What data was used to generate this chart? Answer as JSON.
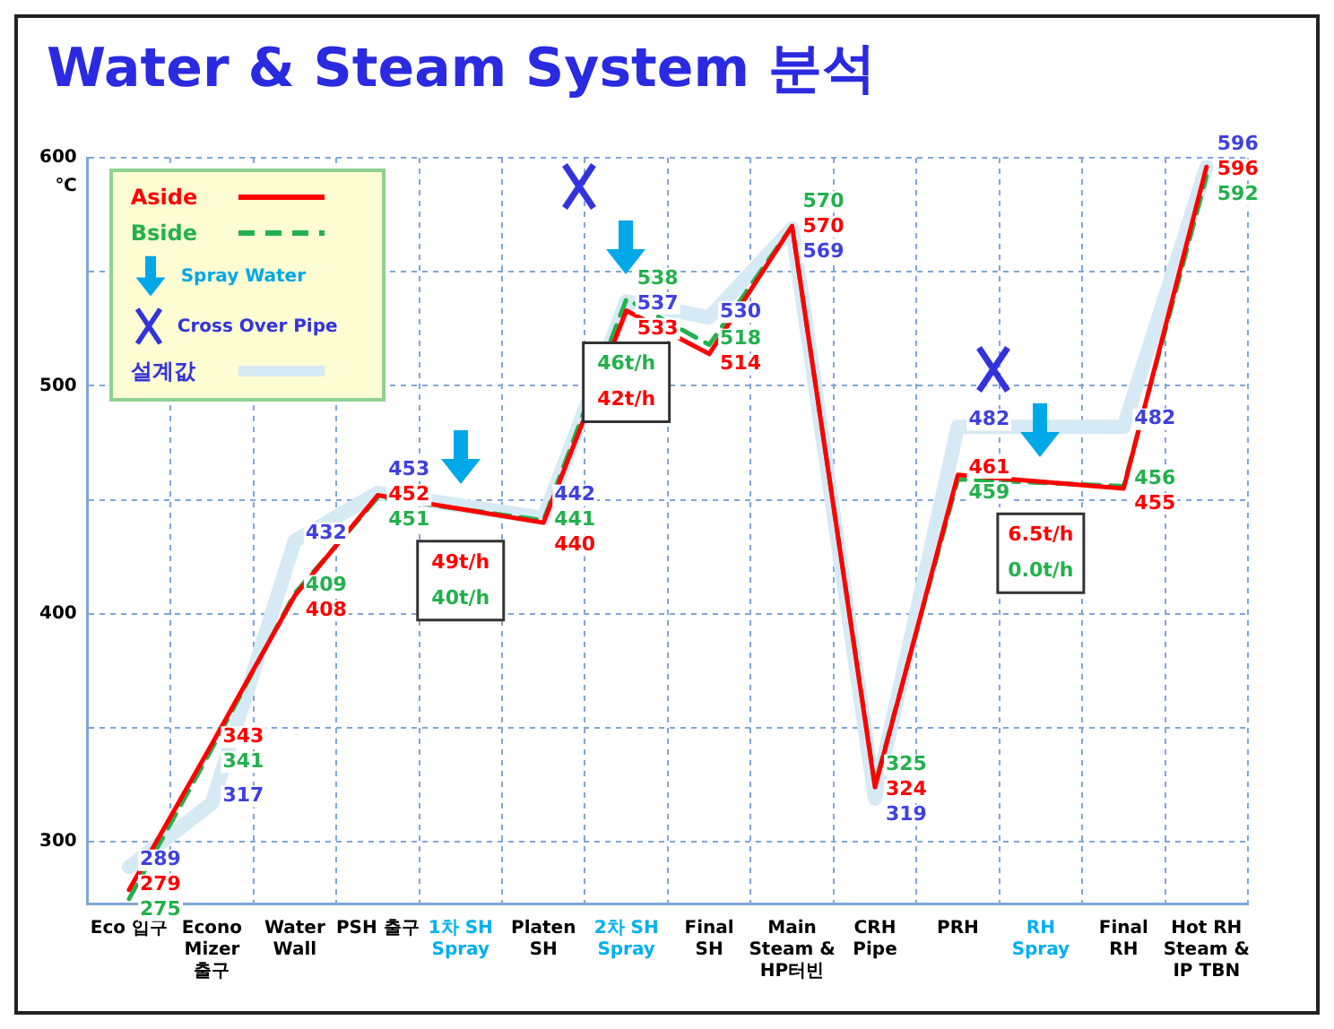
{
  "chart_data": {
    "type": "line",
    "title": "Water & Steam System 분석",
    "ylabel": "℃",
    "categories": [
      "Eco 입구",
      "Econo Mizer 출구",
      "Water Wall",
      "PSH 출구",
      "1차 SH Spray",
      "Platen SH",
      "2차 SH Spray",
      "Final SH",
      "Main Steam & HP터빈",
      "CRH Pipe",
      "PRH",
      "RH Spray",
      "Final RH",
      "Hot RH Steam & IP TBN"
    ],
    "series": [
      {
        "name": "Aside",
        "color": "#ff0000",
        "line_style": "solid",
        "values": [
          279,
          343,
          408,
          452,
          null,
          440,
          533,
          514,
          570,
          324,
          461,
          null,
          455,
          596
        ]
      },
      {
        "name": "Bside",
        "color": "#22b14c",
        "line_style": "dashed",
        "values": [
          275,
          341,
          409,
          451,
          null,
          441,
          538,
          518,
          570,
          325,
          459,
          null,
          456,
          592
        ]
      },
      {
        "name": "설계값",
        "color": "#d6eaf5",
        "line_style": "solid",
        "values": [
          289,
          317,
          432,
          453,
          null,
          442,
          537,
          530,
          569,
          319,
          482,
          null,
          482,
          596
        ]
      }
    ],
    "ylim": [
      273,
      600
    ],
    "yticks": [
      300,
      {
        "value": 350,
        "label": null
      },
      400,
      {
        "value": 450,
        "label": null
      },
      500,
      {
        "value": 550,
        "label": null
      },
      600
    ],
    "grid": true,
    "legend": "top left",
    "marker": "none",
    "data_labels": true,
    "annotations": [
      "Spray Water",
      "Cross Over Pipe",
      "49t/h",
      "40t/h",
      "46t/h",
      "42t/h",
      "6.5t/h",
      "0.0t/h"
    ]
  }
}
